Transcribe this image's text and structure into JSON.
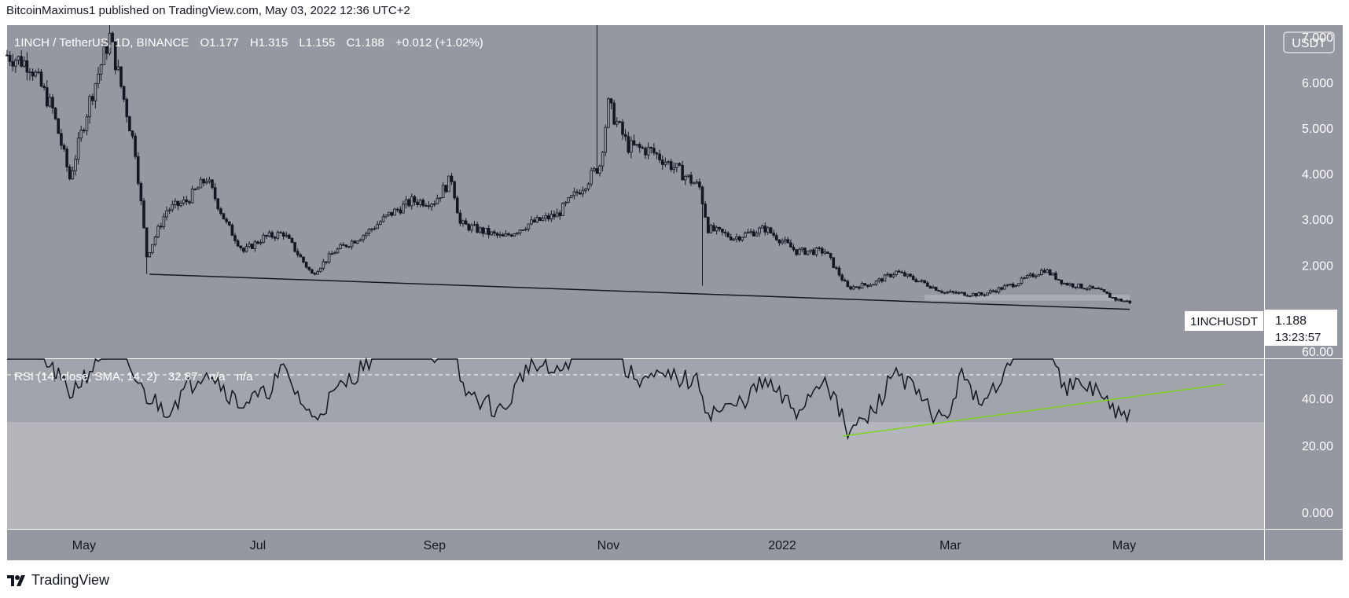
{
  "header": {
    "credit": "BitcoinMaximus1 published on TradingView.com, May 03, 2022 12:36 UTC+2"
  },
  "footer": {
    "brand": "TradingView",
    "logo_icon": "tradingview-logo-icon"
  },
  "colors": {
    "price_pane_bg": "#9598a1",
    "rsi_pane_bg": "#a2a4ab",
    "rsi_band_bg": "#b4b6bc",
    "candle": "#131722",
    "support_line": "#131722",
    "rsi_line": "#131722",
    "rsi_trendline": "#7ed321",
    "support_zone": "#b2b5be"
  },
  "legend": {
    "symbol": "1INCH / TetherUS, 1D, BINANCE",
    "open_label": "O",
    "open": "1.177",
    "high_label": "H",
    "high": "1.315",
    "low_label": "L",
    "low": "1.155",
    "close_label": "C",
    "close": "1.188",
    "change": "+0.012 (+1.02%)"
  },
  "price_axis": {
    "currency": "USDT",
    "ticks": [
      "7.000",
      "6.000",
      "5.000",
      "4.000",
      "3.000",
      "2.000"
    ]
  },
  "price_badge": {
    "symbol": "1INCHUSDT",
    "price": "1.188",
    "countdown": "13:23:57"
  },
  "rsi": {
    "legend_title": "RSI (14, close, SMA, 14, 2)",
    "value": "32.87",
    "na1": "n/a",
    "na2": "n/a",
    "ticks": [
      "60.00",
      "40.00",
      "20.00",
      "0.000"
    ],
    "dashed_level": 50,
    "band": [
      30,
      70
    ]
  },
  "time_axis": [
    "May",
    "Jul",
    "Sep",
    "Nov",
    "2022",
    "Mar",
    "May"
  ],
  "chart_data": [
    {
      "type": "candlestick",
      "pane": "price",
      "title": "1INCH / TetherUS, 1D, BINANCE",
      "ylim": [
        1.0,
        7.3
      ],
      "x_start": "2021-04-04",
      "x_end": "2022-05-03",
      "keyframes_close": [
        [
          "2021-04-04",
          6.6
        ],
        [
          "2021-04-12",
          6.4
        ],
        [
          "2021-04-20",
          5.4
        ],
        [
          "2021-04-26",
          3.9
        ],
        [
          "2021-05-03",
          5.6
        ],
        [
          "2021-05-10",
          7.0
        ],
        [
          "2021-05-13",
          6.2
        ],
        [
          "2021-05-19",
          4.5
        ],
        [
          "2021-05-23",
          2.2
        ],
        [
          "2021-05-30",
          3.2
        ],
        [
          "2021-06-06",
          3.4
        ],
        [
          "2021-06-13",
          3.9
        ],
        [
          "2021-06-20",
          2.9
        ],
        [
          "2021-06-26",
          2.3
        ],
        [
          "2021-07-03",
          2.6
        ],
        [
          "2021-07-10",
          2.7
        ],
        [
          "2021-07-20",
          1.8
        ],
        [
          "2021-07-28",
          2.3
        ],
        [
          "2021-08-08",
          2.7
        ],
        [
          "2021-08-16",
          3.1
        ],
        [
          "2021-08-24",
          3.4
        ],
        [
          "2021-09-01",
          3.4
        ],
        [
          "2021-09-07",
          3.9
        ],
        [
          "2021-09-10",
          2.9
        ],
        [
          "2021-09-25",
          2.6
        ],
        [
          "2021-10-04",
          2.9
        ],
        [
          "2021-10-14",
          3.1
        ],
        [
          "2021-10-24",
          3.8
        ],
        [
          "2021-10-29",
          4.2
        ],
        [
          "2021-11-01",
          5.5
        ],
        [
          "2021-11-08",
          4.6
        ],
        [
          "2021-11-16",
          4.5
        ],
        [
          "2021-11-25",
          4.1
        ],
        [
          "2021-12-03",
          3.7
        ],
        [
          "2021-12-06",
          2.8
        ],
        [
          "2021-12-15",
          2.6
        ],
        [
          "2021-12-26",
          2.8
        ],
        [
          "2022-01-06",
          2.3
        ],
        [
          "2022-01-16",
          2.3
        ],
        [
          "2022-01-24",
          1.5
        ],
        [
          "2022-02-02",
          1.6
        ],
        [
          "2022-02-10",
          1.85
        ],
        [
          "2022-02-20",
          1.6
        ],
        [
          "2022-02-27",
          1.4
        ],
        [
          "2022-03-12",
          1.35
        ],
        [
          "2022-03-24",
          1.6
        ],
        [
          "2022-04-03",
          1.9
        ],
        [
          "2022-04-10",
          1.6
        ],
        [
          "2022-04-22",
          1.45
        ],
        [
          "2022-04-28",
          1.25
        ],
        [
          "2022-05-03",
          1.19
        ]
      ],
      "wick_spikes": [
        [
          "2021-10-28",
          7.3
        ],
        [
          "2021-05-10",
          7.4
        ]
      ],
      "support_line": [
        [
          "2021-05-24",
          1.8
        ],
        [
          "2022-05-03",
          1.03
        ]
      ],
      "support_zone": {
        "x": [
          "2022-02-20",
          "2022-05-03"
        ],
        "y": [
          1.22,
          1.35
        ]
      }
    },
    {
      "type": "line",
      "pane": "rsi",
      "title": "RSI (14, close, SMA, 14, 2)",
      "ylim": [
        0,
        70
      ],
      "keyframes": [
        [
          "2021-04-04",
          62
        ],
        [
          "2021-04-15",
          60
        ],
        [
          "2021-04-26",
          42
        ],
        [
          "2021-05-05",
          55
        ],
        [
          "2021-05-10",
          68
        ],
        [
          "2021-05-22",
          42
        ],
        [
          "2021-05-30",
          35
        ],
        [
          "2021-06-06",
          44
        ],
        [
          "2021-06-13",
          53
        ],
        [
          "2021-06-24",
          38
        ],
        [
          "2021-07-03",
          41
        ],
        [
          "2021-07-10",
          52
        ],
        [
          "2021-07-20",
          31
        ],
        [
          "2021-07-28",
          42
        ],
        [
          "2021-08-08",
          55
        ],
        [
          "2021-08-16",
          66
        ],
        [
          "2021-08-24",
          74
        ],
        [
          "2021-09-01",
          58
        ],
        [
          "2021-09-07",
          72
        ],
        [
          "2021-09-10",
          44
        ],
        [
          "2021-09-25",
          34
        ],
        [
          "2021-10-04",
          55
        ],
        [
          "2021-10-14",
          50
        ],
        [
          "2021-10-24",
          66
        ],
        [
          "2021-10-29",
          80
        ],
        [
          "2021-11-08",
          50
        ],
        [
          "2021-11-16",
          48
        ],
        [
          "2021-11-25",
          49
        ],
        [
          "2021-12-03",
          46
        ],
        [
          "2021-12-06",
          34
        ],
        [
          "2021-12-15",
          36
        ],
        [
          "2021-12-26",
          47
        ],
        [
          "2022-01-06",
          34
        ],
        [
          "2022-01-16",
          50
        ],
        [
          "2022-01-24",
          25
        ],
        [
          "2022-02-02",
          34
        ],
        [
          "2022-02-10",
          53
        ],
        [
          "2022-02-20",
          37
        ],
        [
          "2022-02-27",
          30
        ],
        [
          "2022-03-06",
          52
        ],
        [
          "2022-03-12",
          34
        ],
        [
          "2022-03-24",
          63
        ],
        [
          "2022-04-03",
          73
        ],
        [
          "2022-04-10",
          45
        ],
        [
          "2022-04-22",
          44
        ],
        [
          "2022-04-28",
          32
        ],
        [
          "2022-05-03",
          33
        ]
      ],
      "trendline": [
        [
          "2022-01-22",
          24
        ],
        [
          "2022-06-05",
          46
        ]
      ]
    }
  ]
}
